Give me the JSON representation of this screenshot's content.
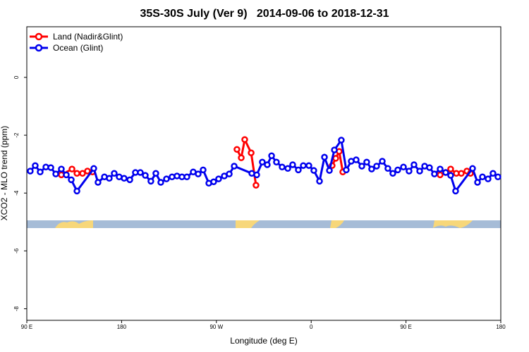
{
  "chart_data": {
    "type": "line",
    "title": "35S-30S July (Ver 9)   2014-09-06 to 2018-12-31",
    "x_label": "Longitude (deg E)",
    "y_label": "XCO2 - MLO trend (ppm)",
    "xlim": [
      90,
      540
    ],
    "xticks": [
      {
        "value": 90,
        "label": "90 E"
      },
      {
        "value": 180,
        "label": "180"
      },
      {
        "value": 270,
        "label": "90 W"
      },
      {
        "value": 360,
        "label": "0"
      },
      {
        "value": 450,
        "label": "90 E"
      },
      {
        "value": 540,
        "label": "180"
      }
    ],
    "ylim": [
      -8.4,
      1.75
    ],
    "yticks": [
      0,
      -2,
      -4,
      -6,
      -8
    ],
    "legend": "top-left",
    "series": [
      {
        "name": "Land (Nadir&Glint)",
        "color": "#ff0000",
        "x": [
          122.8,
          132.9,
          137.6,
          142.9,
          147.6,
          152.3,
          null,
          289.5,
          293.6,
          296.9,
          303.0,
          307.6,
          null,
          379.9,
          383.3,
          386.6,
          390.0,
          null,
          482.4,
          487.7,
          492.4,
          497.8,
          502.5,
          507.8,
          511.2
        ],
        "values": [
          -3.37,
          -3.17,
          -3.32,
          -3.32,
          -3.24,
          -3.27,
          null,
          -2.49,
          -2.78,
          -2.15,
          -2.61,
          -3.73,
          null,
          -3.05,
          -2.8,
          -2.56,
          -3.27,
          null,
          -3.37,
          -3.29,
          -3.17,
          -3.32,
          -3.32,
          -3.24,
          -3.32
        ]
      },
      {
        "name": "Ocean (Glint)",
        "color": "#0000ee",
        "x": [
          93.3,
          98.0,
          102.7,
          108.1,
          112.8,
          117.5,
          122.8,
          127.5,
          132.2,
          137.6,
          153.6,
          157.6,
          163.7,
          168.3,
          173.0,
          177.7,
          182.4,
          187.8,
          193.1,
          197.8,
          202.5,
          207.8,
          212.5,
          217.2,
          222.6,
          227.9,
          232.6,
          237.3,
          242.0,
          248.0,
          252.7,
          257.4,
          262.8,
          267.4,
          272.1,
          277.5,
          282.2,
          286.9,
          303.6,
          308.3,
          313.6,
          318.3,
          322.4,
          327.0,
          332.4,
          337.8,
          342.4,
          347.8,
          352.5,
          357.8,
          362.5,
          367.9,
          372.6,
          377.3,
          382.0,
          388.6,
          393.3,
          398.0,
          402.7,
          408.1,
          412.7,
          417.4,
          422.1,
          427.5,
          432.8,
          437.5,
          442.2,
          447.6,
          452.9,
          457.6,
          463.0,
          467.7,
          472.3,
          477.0,
          482.4,
          487.7,
          492.4,
          497.1,
          513.2,
          517.9,
          522.6,
          527.9,
          532.6,
          537.3
        ],
        "values": [
          -3.24,
          -3.05,
          -3.27,
          -3.1,
          -3.12,
          -3.34,
          -3.17,
          -3.37,
          -3.54,
          -3.93,
          -3.15,
          -3.63,
          -3.44,
          -3.49,
          -3.32,
          -3.44,
          -3.49,
          -3.54,
          -3.29,
          -3.29,
          -3.39,
          -3.59,
          -3.32,
          -3.63,
          -3.51,
          -3.44,
          -3.41,
          -3.44,
          -3.44,
          -3.27,
          -3.34,
          -3.2,
          -3.66,
          -3.61,
          -3.51,
          -3.41,
          -3.34,
          -3.07,
          -3.32,
          -3.37,
          -2.93,
          -3.02,
          -2.71,
          -2.93,
          -3.1,
          -3.15,
          -3.02,
          -3.2,
          -3.05,
          -3.05,
          -3.22,
          -3.59,
          -2.76,
          -3.22,
          -2.51,
          -2.17,
          -3.2,
          -2.9,
          -2.85,
          -3.07,
          -2.93,
          -3.17,
          -3.07,
          -2.9,
          -3.15,
          -3.32,
          -3.2,
          -3.1,
          -3.24,
          -3.02,
          -3.24,
          -3.07,
          -3.12,
          -3.34,
          -3.17,
          -3.29,
          -3.39,
          -3.93,
          -3.15,
          -3.63,
          -3.44,
          -3.51,
          -3.32,
          -3.44
        ]
      }
    ]
  }
}
